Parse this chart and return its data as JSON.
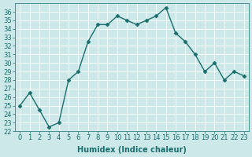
{
  "title": "",
  "xlabel": "Humidex (Indice chaleur)",
  "x": [
    0,
    1,
    2,
    3,
    4,
    5,
    6,
    7,
    8,
    9,
    10,
    11,
    12,
    13,
    14,
    15,
    16,
    17,
    18,
    19,
    20,
    21,
    22,
    23
  ],
  "y": [
    25.0,
    26.5,
    24.5,
    22.5,
    23.0,
    28.0,
    29.0,
    32.5,
    34.5,
    34.5,
    35.5,
    35.0,
    34.5,
    35.0,
    35.5,
    36.5,
    33.5,
    32.5,
    31.0,
    29.0,
    30.0,
    28.0,
    29.0,
    28.5
  ],
  "line_color": "#1a6e6e",
  "marker": "D",
  "marker_size": 2.5,
  "line_width": 1.0,
  "bg_color": "#cce8e8",
  "grid_color": "#ffffff",
  "tick_color": "#1a6e6e",
  "label_color": "#1a6e6e",
  "ylim": [
    22,
    37
  ],
  "yticks": [
    22,
    23,
    24,
    25,
    26,
    27,
    28,
    29,
    30,
    31,
    32,
    33,
    34,
    35,
    36
  ],
  "xticks": [
    0,
    1,
    2,
    3,
    4,
    5,
    6,
    7,
    8,
    9,
    10,
    11,
    12,
    13,
    14,
    15,
    16,
    17,
    18,
    19,
    20,
    21,
    22,
    23
  ],
  "axis_fontsize": 7,
  "tick_fontsize": 6
}
